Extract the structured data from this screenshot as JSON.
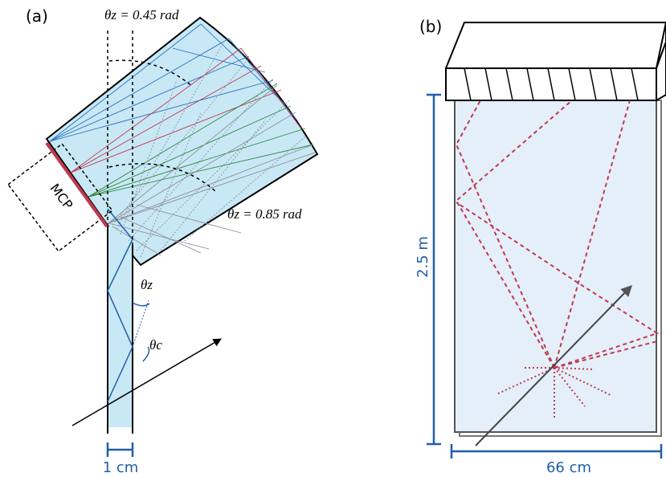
{
  "panel_a": {
    "label": "(a)",
    "theta_z_top": "θz = 0.45 rad",
    "theta_z_bottom": "θz = 0.85 rad",
    "mcp_label": "MCP",
    "theta_z": "θz",
    "theta_c": "θc",
    "width_label": "1 cm"
  },
  "panel_b": {
    "label": "(b)",
    "height_label": "2.5 m",
    "width_label": "66 cm"
  },
  "colors": {
    "quartz_fill": "#c9e8f6",
    "dim_blue": "#1f5fa8",
    "ray_blue": "#2a6fbf",
    "ray_red": "#c0394f",
    "ray_green": "#2c8a3c",
    "ray_gray": "#8a8f99",
    "dashed_red": "#c0394f",
    "panel_b_fill": "#e4eff9"
  }
}
